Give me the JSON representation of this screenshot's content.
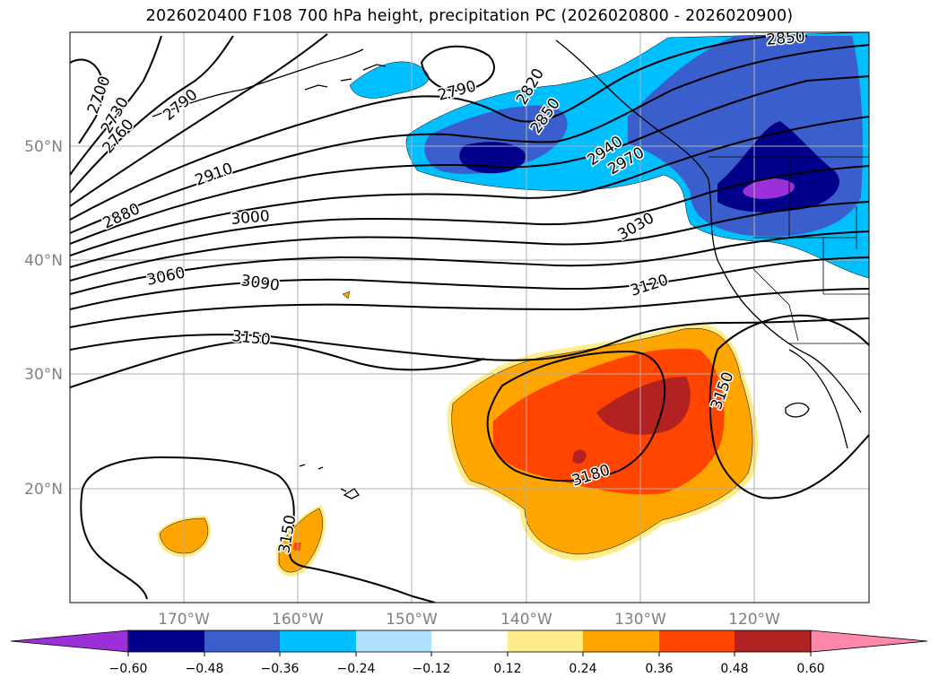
{
  "title": "2026020400 F108 700 hPa height, precipitation PC (2026020800 - 2026020900)",
  "lat_ticks": [
    "50°N",
    "40°N",
    "30°N",
    "20°N"
  ],
  "lon_ticks": [
    "170°W",
    "160°W",
    "150°W",
    "140°W",
    "130°W",
    "120°W"
  ],
  "contour_labels": [
    "2700",
    "2730",
    "2760",
    "2790",
    "2790",
    "2820",
    "2850",
    "2850",
    "2880",
    "2910",
    "2940",
    "2970",
    "3000",
    "3030",
    "3060",
    "3090",
    "3120",
    "3150",
    "3150",
    "3150",
    "3180"
  ],
  "colorbar": {
    "ticks": [
      "−0.60",
      "−0.48",
      "−0.36",
      "−0.24",
      "−0.12",
      "0.12",
      "0.24",
      "0.36",
      "0.48",
      "0.60"
    ],
    "colors": [
      "#9b30d9",
      "#00008b",
      "#3a5fcd",
      "#00bfff",
      "#b0e2ff",
      "#ffffff",
      "#ffec8b",
      "#ffa500",
      "#ff4500",
      "#b22222",
      "#ff88aa"
    ]
  }
}
